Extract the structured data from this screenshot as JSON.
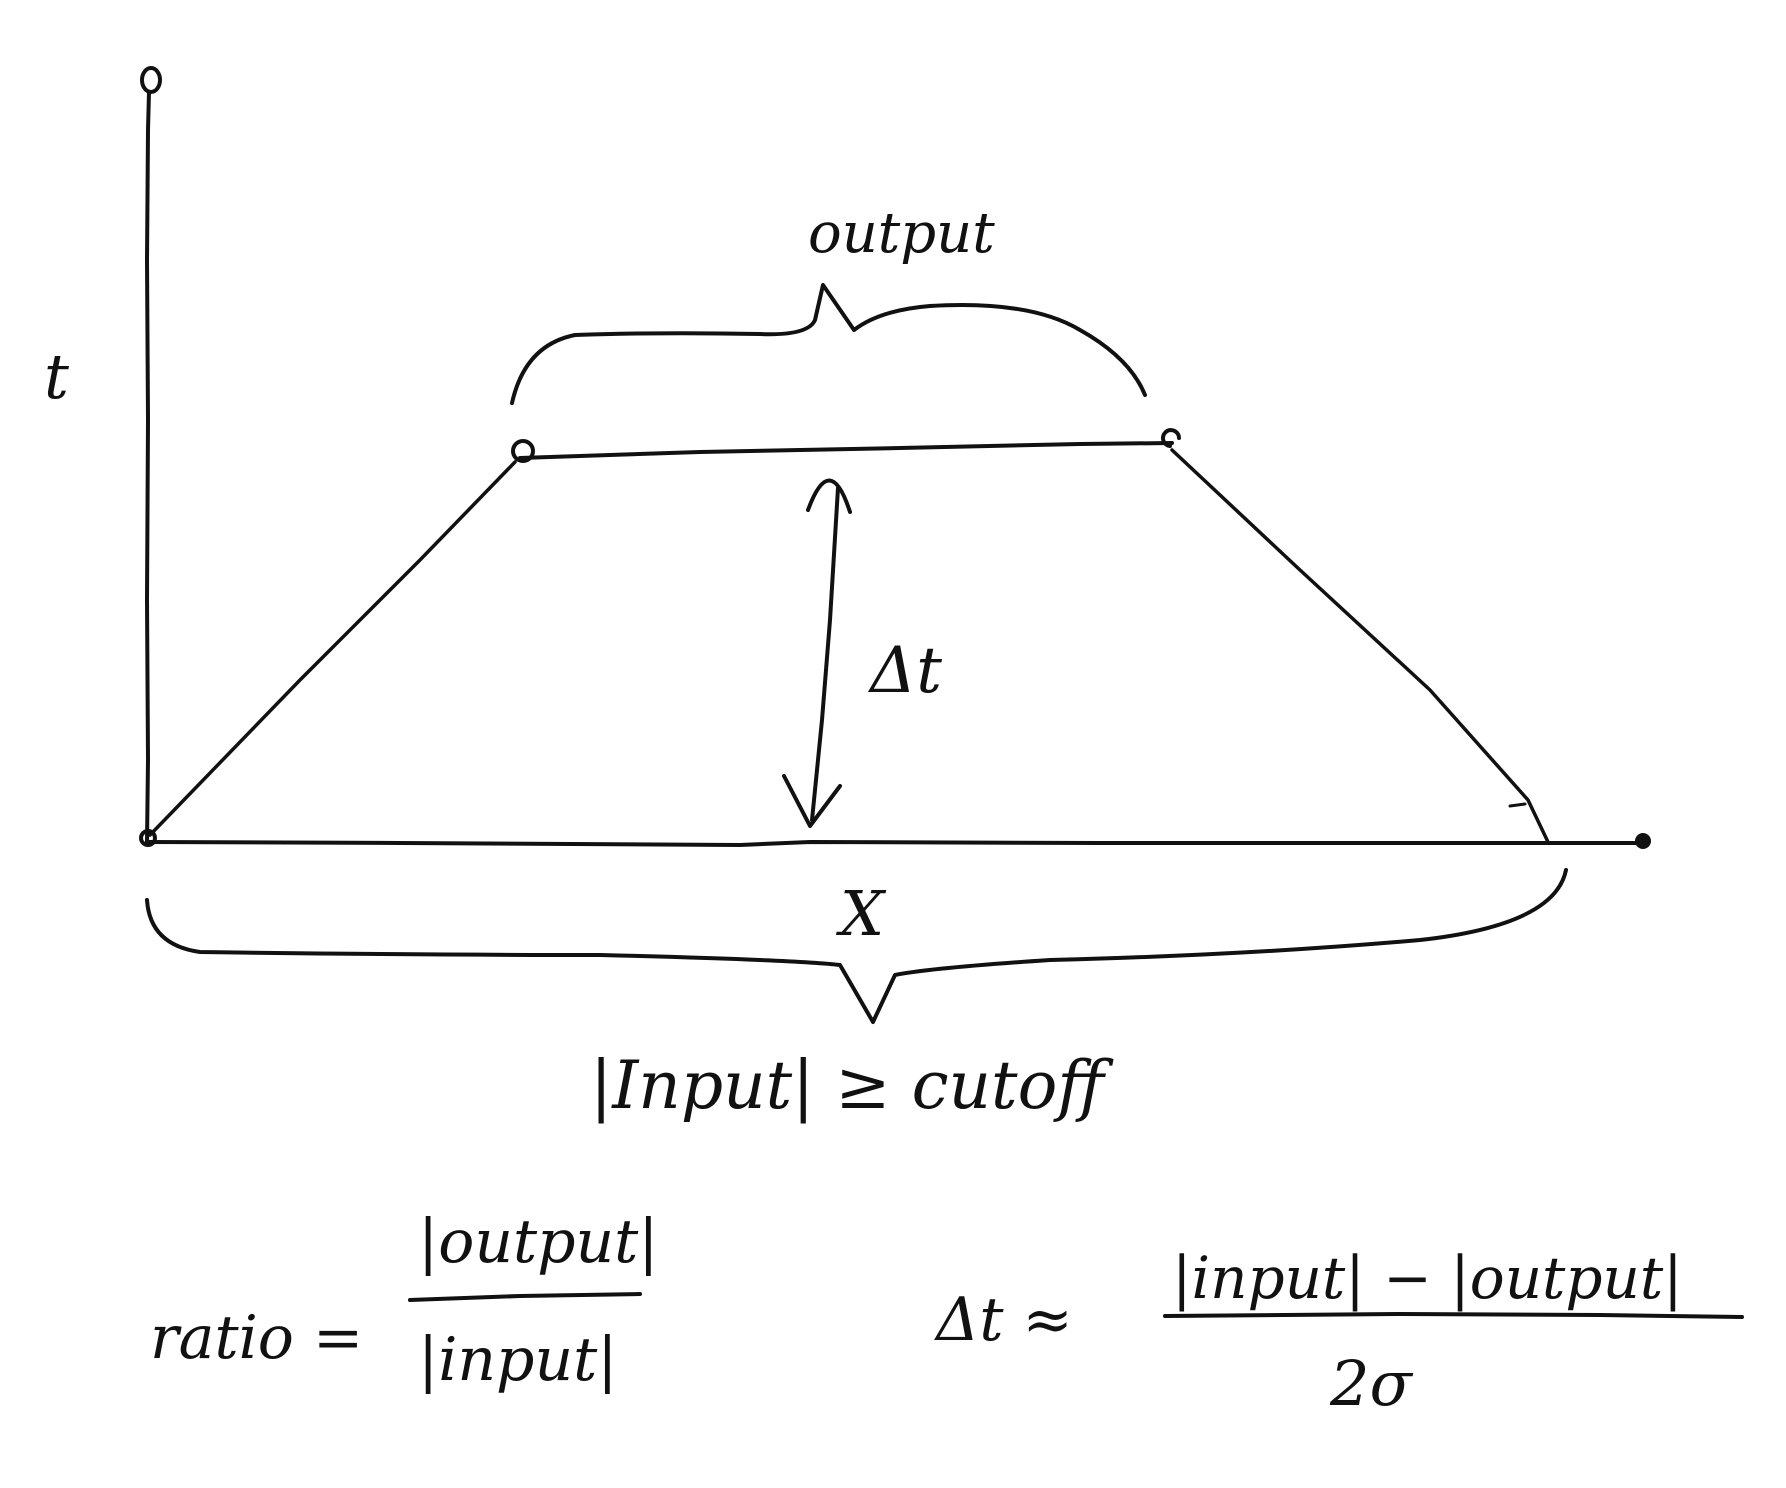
{
  "diagram": {
    "axes": {
      "y_label": "t",
      "x_label": "X"
    },
    "labels": {
      "top_brace": "output",
      "height": "Δt",
      "bottom_condition": "|Input| ≥ cutoff"
    },
    "equations": {
      "ratio_lhs": "ratio =",
      "ratio_num": "|output|",
      "ratio_den": "|input|",
      "dt_lhs": "Δt ≈",
      "dt_num": "|input| − |output|",
      "dt_den": "2σ"
    }
  }
}
